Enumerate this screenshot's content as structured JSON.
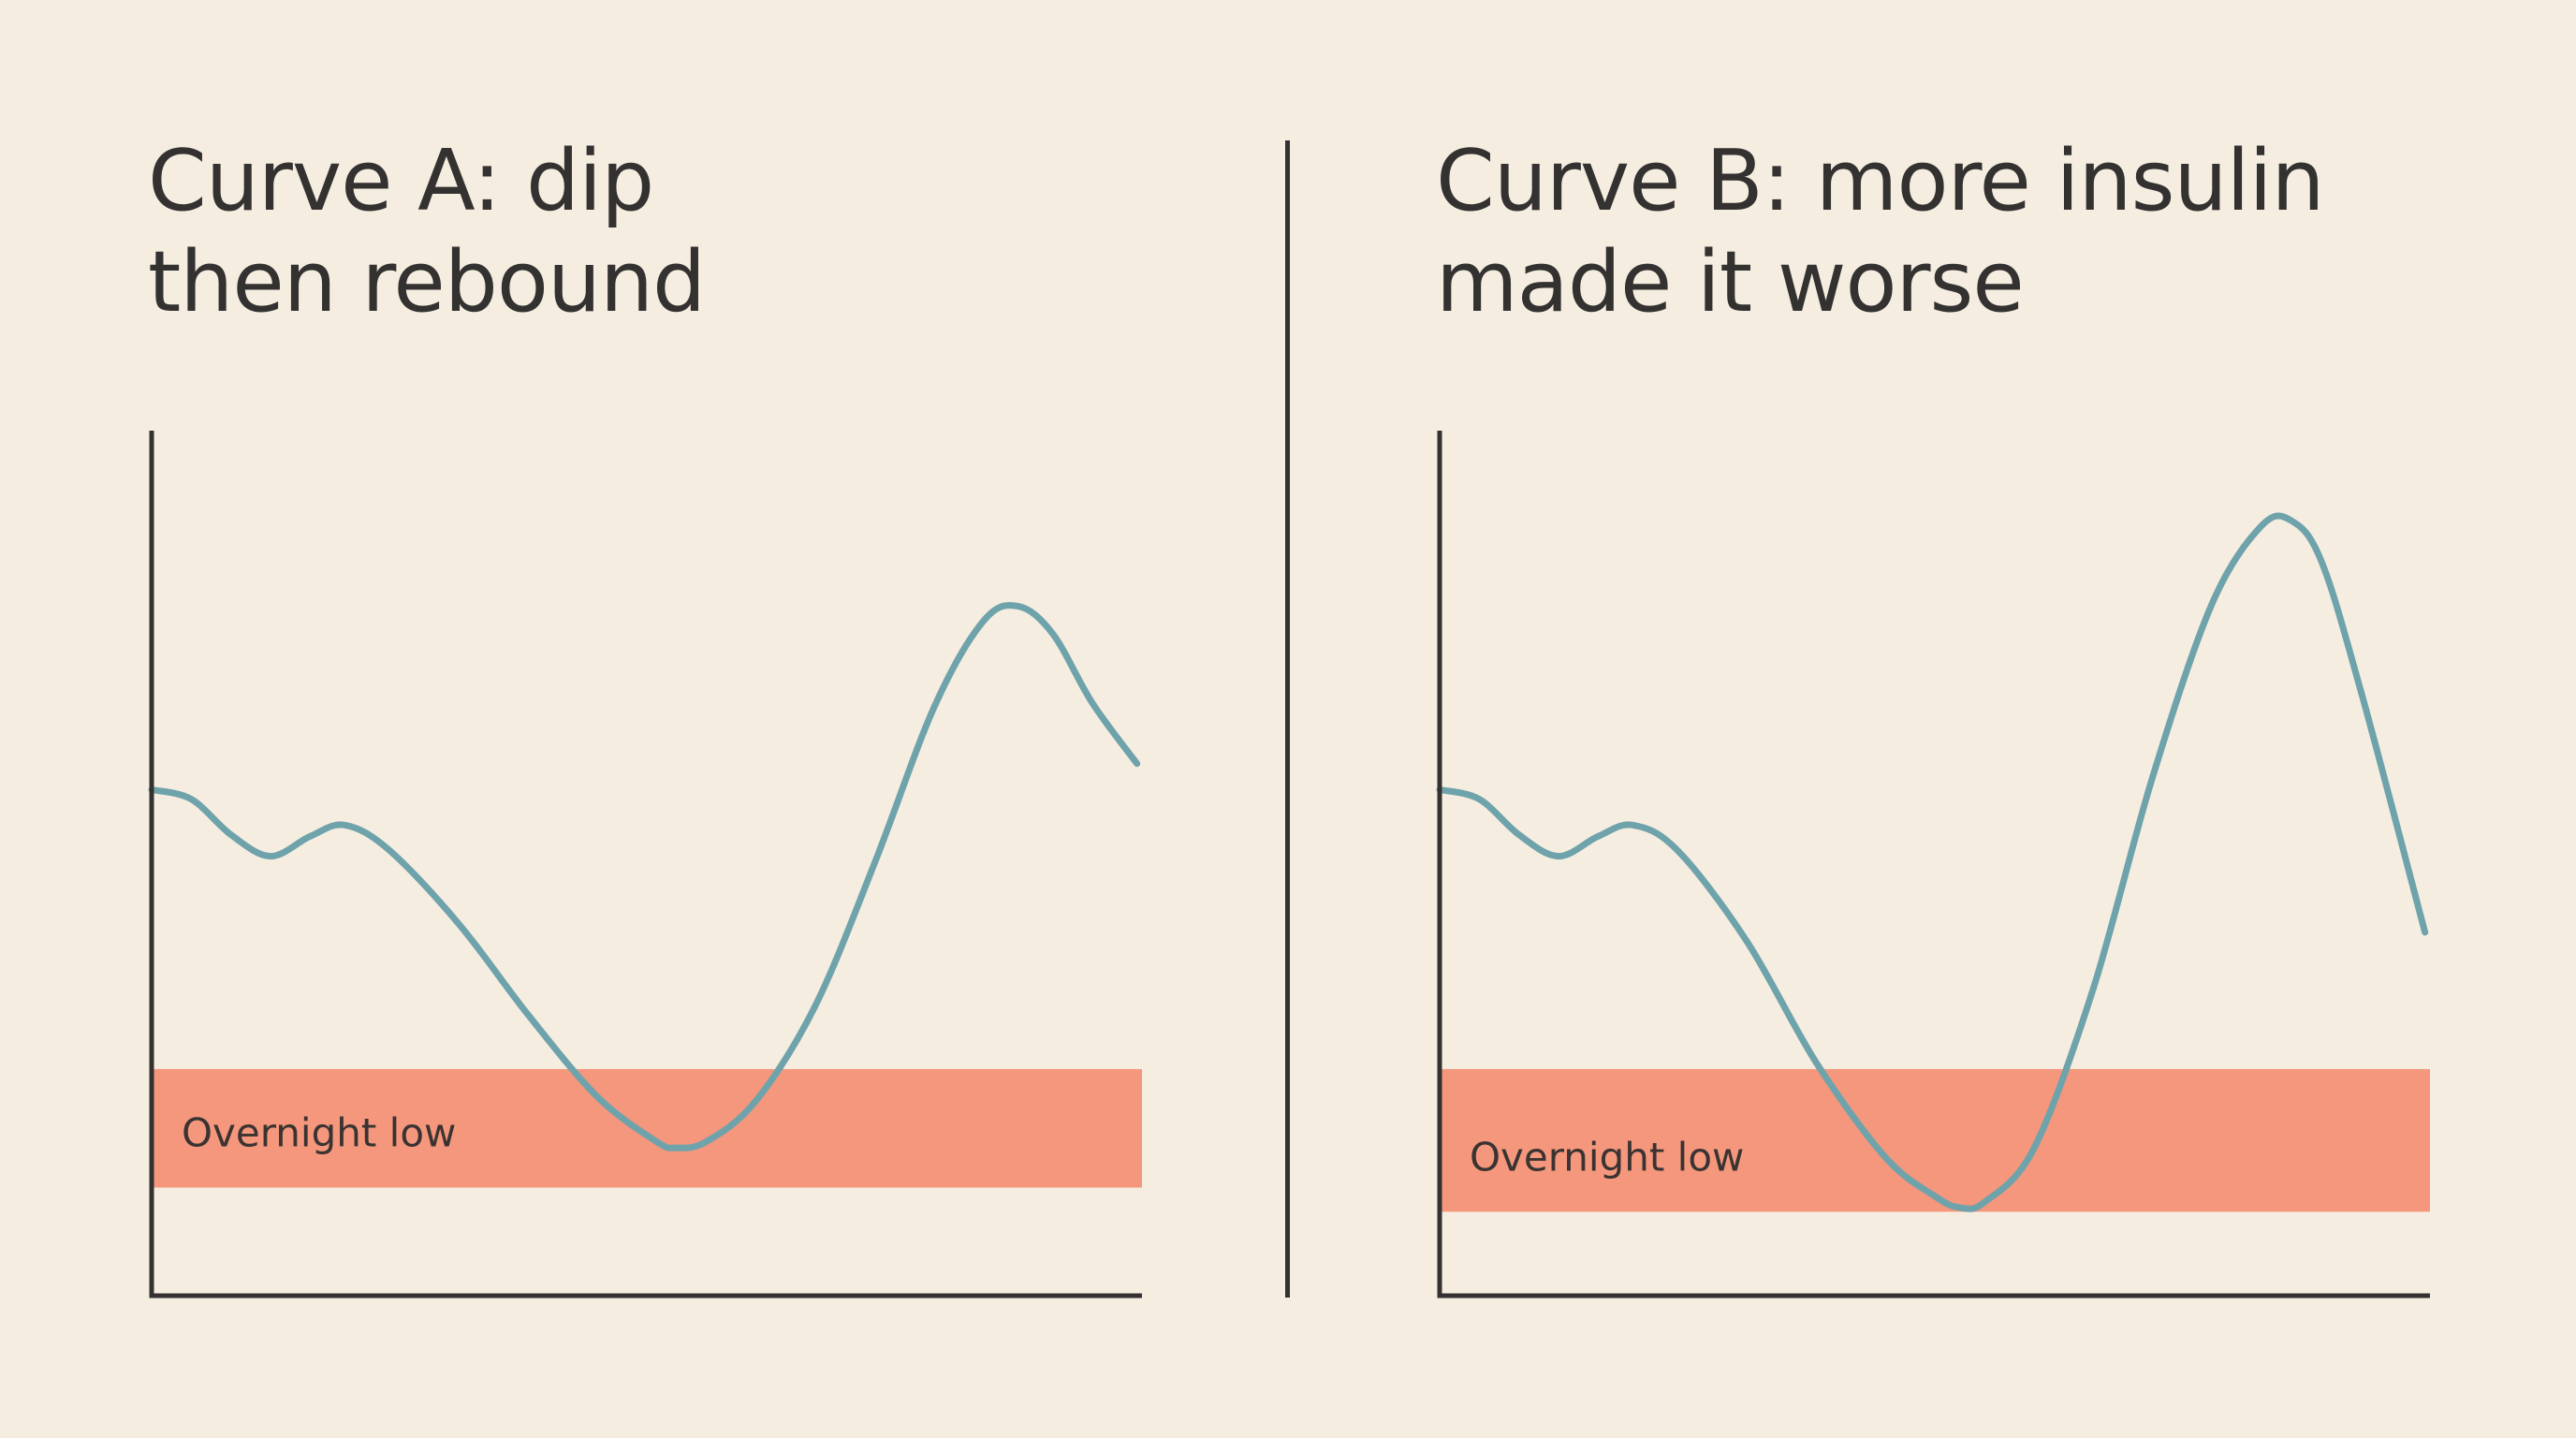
{
  "colors": {
    "background": "#f6ede1",
    "axis": "#333231",
    "curve": "#6fa3ab",
    "low_band": "#f4977c",
    "text": "#333231"
  },
  "chart_data": [
    {
      "type": "line",
      "title_lines": [
        "Curve A: dip",
        "then rebound"
      ],
      "xlabel": "",
      "ylabel": "",
      "xlim": [
        0,
        100
      ],
      "ylim": [
        0,
        100
      ],
      "grid": false,
      "band": {
        "label": "Overnight low",
        "y_from": 12.5,
        "y_to": 26.2
      },
      "series": [
        {
          "values": [
            {
              "x": 0,
              "y": 58.5
            },
            {
              "x": 4,
              "y": 57.4
            },
            {
              "x": 8,
              "y": 53.3
            },
            {
              "x": 12,
              "y": 50.8
            },
            {
              "x": 16,
              "y": 53.1
            },
            {
              "x": 19.5,
              "y": 54.4
            },
            {
              "x": 24,
              "y": 51.5
            },
            {
              "x": 31,
              "y": 43.0
            },
            {
              "x": 38,
              "y": 32.5
            },
            {
              "x": 45,
              "y": 23.0
            },
            {
              "x": 51,
              "y": 17.8
            },
            {
              "x": 53,
              "y": 17.1
            },
            {
              "x": 56,
              "y": 17.8
            },
            {
              "x": 61,
              "y": 22.5
            },
            {
              "x": 67,
              "y": 33.5
            },
            {
              "x": 73,
              "y": 50.0
            },
            {
              "x": 79,
              "y": 68.0
            },
            {
              "x": 84,
              "y": 78.0
            },
            {
              "x": 87.5,
              "y": 79.7
            },
            {
              "x": 91,
              "y": 76.5
            },
            {
              "x": 95,
              "y": 68.5
            },
            {
              "x": 99.5,
              "y": 61.5
            }
          ]
        }
      ]
    },
    {
      "type": "line",
      "title_lines": [
        "Curve B: more insulin",
        "made it worse"
      ],
      "xlabel": "",
      "ylabel": "",
      "xlim": [
        0,
        100
      ],
      "ylim": [
        0,
        100
      ],
      "grid": false,
      "band": {
        "label": "Overnight low",
        "y_from": 9.7,
        "y_to": 26.2
      },
      "series": [
        {
          "values": [
            {
              "x": 0,
              "y": 58.5
            },
            {
              "x": 4,
              "y": 57.4
            },
            {
              "x": 8,
              "y": 53.3
            },
            {
              "x": 12,
              "y": 50.8
            },
            {
              "x": 16,
              "y": 53.1
            },
            {
              "x": 19.5,
              "y": 54.4
            },
            {
              "x": 24,
              "y": 51.5
            },
            {
              "x": 31,
              "y": 41.0
            },
            {
              "x": 38,
              "y": 27.0
            },
            {
              "x": 45,
              "y": 16.0
            },
            {
              "x": 50,
              "y": 11.5
            },
            {
              "x": 52.5,
              "y": 10.2
            },
            {
              "x": 55,
              "y": 10.8
            },
            {
              "x": 60,
              "y": 17.0
            },
            {
              "x": 66,
              "y": 35.5
            },
            {
              "x": 72,
              "y": 60.0
            },
            {
              "x": 78,
              "y": 80.0
            },
            {
              "x": 83,
              "y": 89.0
            },
            {
              "x": 86,
              "y": 89.6
            },
            {
              "x": 89,
              "y": 85.0
            },
            {
              "x": 93,
              "y": 70.0
            },
            {
              "x": 99.5,
              "y": 42.0
            }
          ]
        }
      ]
    }
  ]
}
